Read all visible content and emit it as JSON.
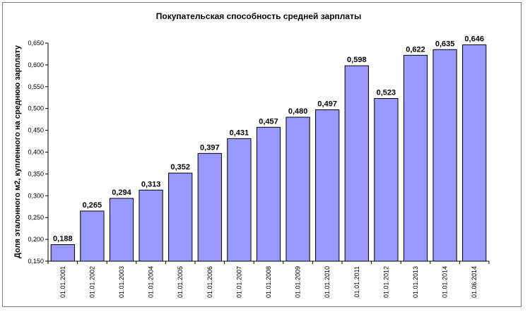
{
  "chart_data": {
    "type": "bar",
    "title": "Покупательская способность средней зарплаты",
    "ylabel": "Доля эталонного м2, купленного на среднюю зарплату",
    "xlabel": "",
    "categories": [
      "01.01.2001",
      "01.01.2002",
      "01.01.2003",
      "01.01.2004",
      "01.01.2005",
      "01.01.2006",
      "01.01.2007",
      "01.01.2008",
      "01.01.2009",
      "01.01.2010",
      "01.01.2011",
      "01.01.2012",
      "01.01.2013",
      "01.01.2014",
      "01.06.2014"
    ],
    "values": [
      0.188,
      0.265,
      0.294,
      0.313,
      0.352,
      0.397,
      0.431,
      0.457,
      0.48,
      0.497,
      0.598,
      0.523,
      0.622,
      0.635,
      0.646
    ],
    "value_labels": [
      "0,188",
      "0,265",
      "0,294",
      "0,313",
      "0,352",
      "0,397",
      "0,431",
      "0,457",
      "0,480",
      "0,497",
      "0,598",
      "0,523",
      "0,622",
      "0,635",
      "0,646"
    ],
    "yticks": [
      0.15,
      0.2,
      0.25,
      0.3,
      0.35,
      0.4,
      0.45,
      0.5,
      0.55,
      0.6,
      0.65
    ],
    "ytick_labels": [
      "0,150",
      "0,200",
      "0,250",
      "0,300",
      "0,350",
      "0,400",
      "0,450",
      "0,500",
      "0,550",
      "0,600",
      "0,650"
    ],
    "ylim": [
      0.15,
      0.65
    ],
    "grid": false,
    "legend": "none",
    "colors": {
      "bar_fill": "#9999ff",
      "bar_stroke": "#000000",
      "axis": "#000000"
    }
  }
}
